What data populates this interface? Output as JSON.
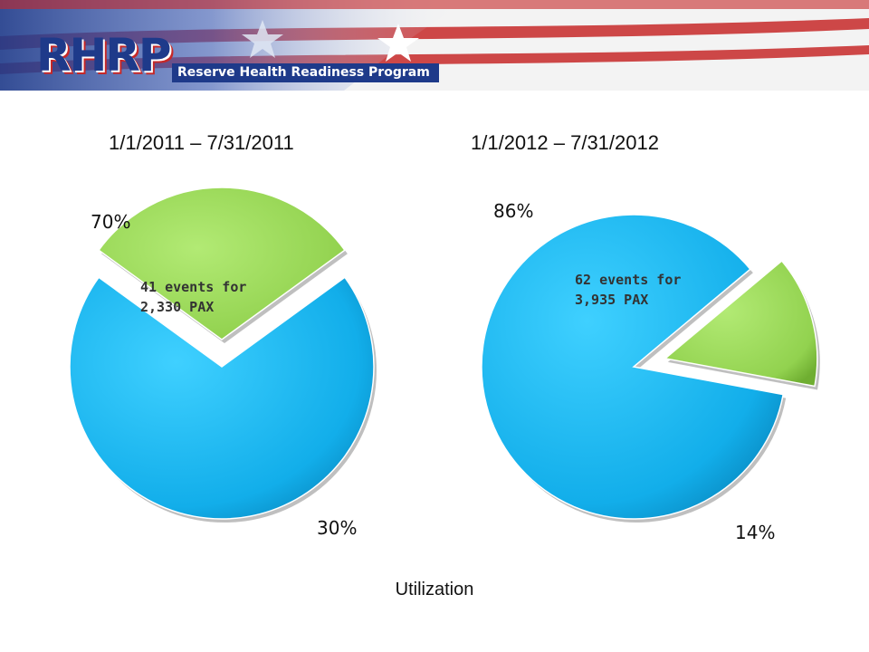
{
  "header": {
    "logo_text": "RHRP",
    "tagline": "Reserve Health Readiness Program"
  },
  "chart_data": [
    {
      "type": "pie",
      "title": "1/1/2011 – 7/31/2011",
      "slices": [
        {
          "value": 70,
          "label": "70%",
          "color": "#18b4f0"
        },
        {
          "value": 30,
          "label": "30%",
          "color": "#9ad957"
        }
      ],
      "annotation": [
        "41 events for",
        "2,330 PAX"
      ]
    },
    {
      "type": "pie",
      "title": "1/1/2012 – 7/31/2012",
      "slices": [
        {
          "value": 86,
          "label": "86%",
          "color": "#18b4f0"
        },
        {
          "value": 14,
          "label": "14%",
          "color": "#9ad957"
        }
      ],
      "annotation": [
        "62 events for",
        "3,935 PAX"
      ]
    }
  ],
  "footer": {
    "caption": "Utilization"
  }
}
